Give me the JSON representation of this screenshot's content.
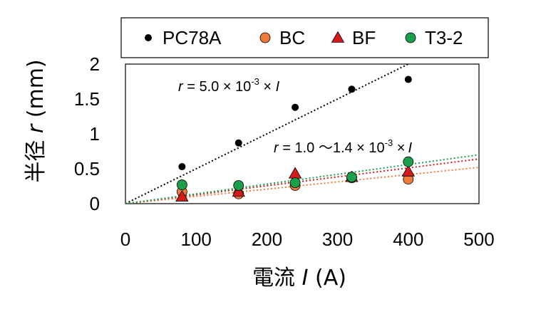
{
  "chart_data": {
    "type": "scatter",
    "xlabel_prefix": "電流 ",
    "xlabel_var": "I",
    "xlabel_unit": " (A)",
    "ylabel_prefix": "半径 ",
    "ylabel_var": "r",
    "ylabel_unit": " (mm)",
    "xlim": [
      0,
      500
    ],
    "ylim": [
      0,
      2
    ],
    "xticks": [
      "0",
      "100",
      "200",
      "300",
      "400",
      "500"
    ],
    "yticks": [
      "0",
      "0.5",
      "1",
      "1.5",
      "2"
    ],
    "grid": false,
    "legend_position": "top",
    "series": [
      {
        "name": "PC78A",
        "marker": "circle",
        "color": "#000000",
        "x": [
          80,
          160,
          240,
          320,
          400
        ],
        "y": [
          0.53,
          0.87,
          1.38,
          1.64,
          1.78
        ]
      },
      {
        "name": "BC",
        "marker": "circle",
        "color": "#f07a3c",
        "x": [
          80,
          160,
          240,
          320,
          400
        ],
        "y": [
          0.17,
          0.14,
          0.26,
          0.37,
          0.35
        ]
      },
      {
        "name": "BF",
        "marker": "triangle",
        "color": "#d61a1a",
        "x": [
          80,
          160,
          240,
          320,
          400
        ],
        "y": [
          0.1,
          0.17,
          0.43,
          0.38,
          0.46
        ]
      },
      {
        "name": "T3-2",
        "marker": "circle",
        "color": "#1aa04a",
        "x": [
          80,
          160,
          240,
          320,
          400
        ],
        "y": [
          0.27,
          0.26,
          0.3,
          0.38,
          0.6
        ]
      }
    ],
    "trendlines": [
      {
        "slope": 0.005,
        "color": "#000000"
      },
      {
        "slope": 0.00104,
        "color": "#f07a3c"
      },
      {
        "slope": 0.00128,
        "color": "#d61a1a"
      },
      {
        "slope": 0.0014,
        "color": "#1aa04a"
      }
    ],
    "annotations": {
      "a1_r": "r",
      "a1_main": " = 5.0 × 10",
      "a1_sup": "-3",
      "a1_tail": " × ",
      "a1_I": "I",
      "a2_r": "r",
      "a2_main": " = 1.0 ～1.4 × 10",
      "a2_sup": "-3",
      "a2_tail": " ×",
      "a2_I": "I"
    }
  }
}
